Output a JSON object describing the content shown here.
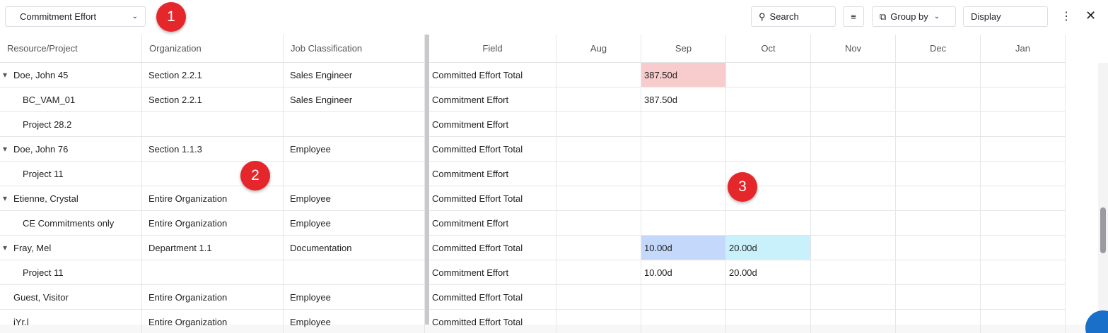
{
  "toolbar": {
    "view": "Commitment Effort",
    "search": "Search",
    "group_by": "Group by",
    "display": "Display"
  },
  "annotations": [
    {
      "label": "1"
    },
    {
      "label": "2"
    },
    {
      "label": "3"
    }
  ],
  "left_columns": [
    "Resource/Project",
    "Organization",
    "Job Classification"
  ],
  "right_columns": [
    "Field",
    "Aug",
    "Sep",
    "Oct",
    "Nov",
    "Dec",
    "Jan"
  ],
  "rows": [
    {
      "resource": "Doe, John 45",
      "toggle": true,
      "organization": "Section 2.2.1",
      "job": "Sales Engineer",
      "field": "Committed Effort Total",
      "cells": [
        null,
        {
          "text": "387.50d",
          "color": "#f8cccc"
        },
        null,
        null,
        null,
        null
      ]
    },
    {
      "resource": "BC_VAM_01",
      "child": true,
      "organization": "Section 2.2.1",
      "job": "Sales Engineer",
      "field": "Commitment Effort",
      "cells": [
        null,
        {
          "text": "387.50d"
        },
        null,
        null,
        null,
        null
      ]
    },
    {
      "resource": "Project 28.2",
      "child": true,
      "field": "Commitment Effort",
      "cells": [
        null,
        null,
        null,
        null,
        null,
        null
      ]
    },
    {
      "resource": "Doe, John 76",
      "toggle": true,
      "organization": "Section 1.1.3",
      "job": "Employee",
      "field": "Committed Effort Total",
      "cells": [
        null,
        null,
        null,
        null,
        null,
        null
      ]
    },
    {
      "resource": "Project 11",
      "child": true,
      "field": "Commitment Effort",
      "cells": [
        null,
        null,
        null,
        null,
        null,
        null
      ]
    },
    {
      "resource": "Etienne, Crystal",
      "toggle": true,
      "organization": "Entire Organization",
      "job": "Employee",
      "field": "Committed Effort Total",
      "cells": [
        null,
        null,
        null,
        null,
        null,
        null
      ]
    },
    {
      "resource": "CE Commitments only",
      "child": true,
      "organization": "Entire Organization",
      "job": "Employee",
      "field": "Commitment Effort",
      "cells": [
        null,
        null,
        null,
        null,
        null,
        null
      ]
    },
    {
      "resource": "Fray, Mel",
      "toggle": true,
      "organization": "Department 1.1",
      "job": "Documentation",
      "field": "Committed Effort Total",
      "cells": [
        null,
        {
          "text": "10.00d",
          "color": "#c3d8fb"
        },
        {
          "text": "20.00d",
          "color": "#c9f1fb"
        },
        null,
        null,
        null
      ]
    },
    {
      "resource": "Project 11",
      "child": true,
      "field": "Commitment Effort",
      "cells": [
        null,
        {
          "text": "10.00d"
        },
        {
          "text": "20.00d"
        },
        null,
        null,
        null
      ]
    },
    {
      "resource": "Guest, Visitor",
      "organization": "Entire Organization",
      "job": "Employee",
      "field": "Committed Effort Total",
      "cells": [
        null,
        null,
        null,
        null,
        null,
        null
      ]
    },
    {
      "resource": "iYr.l",
      "organization": "Entire Organization",
      "job": "Employee",
      "field": "Committed Effort Total",
      "cells": [
        null,
        null,
        null,
        null,
        null,
        null
      ]
    }
  ]
}
